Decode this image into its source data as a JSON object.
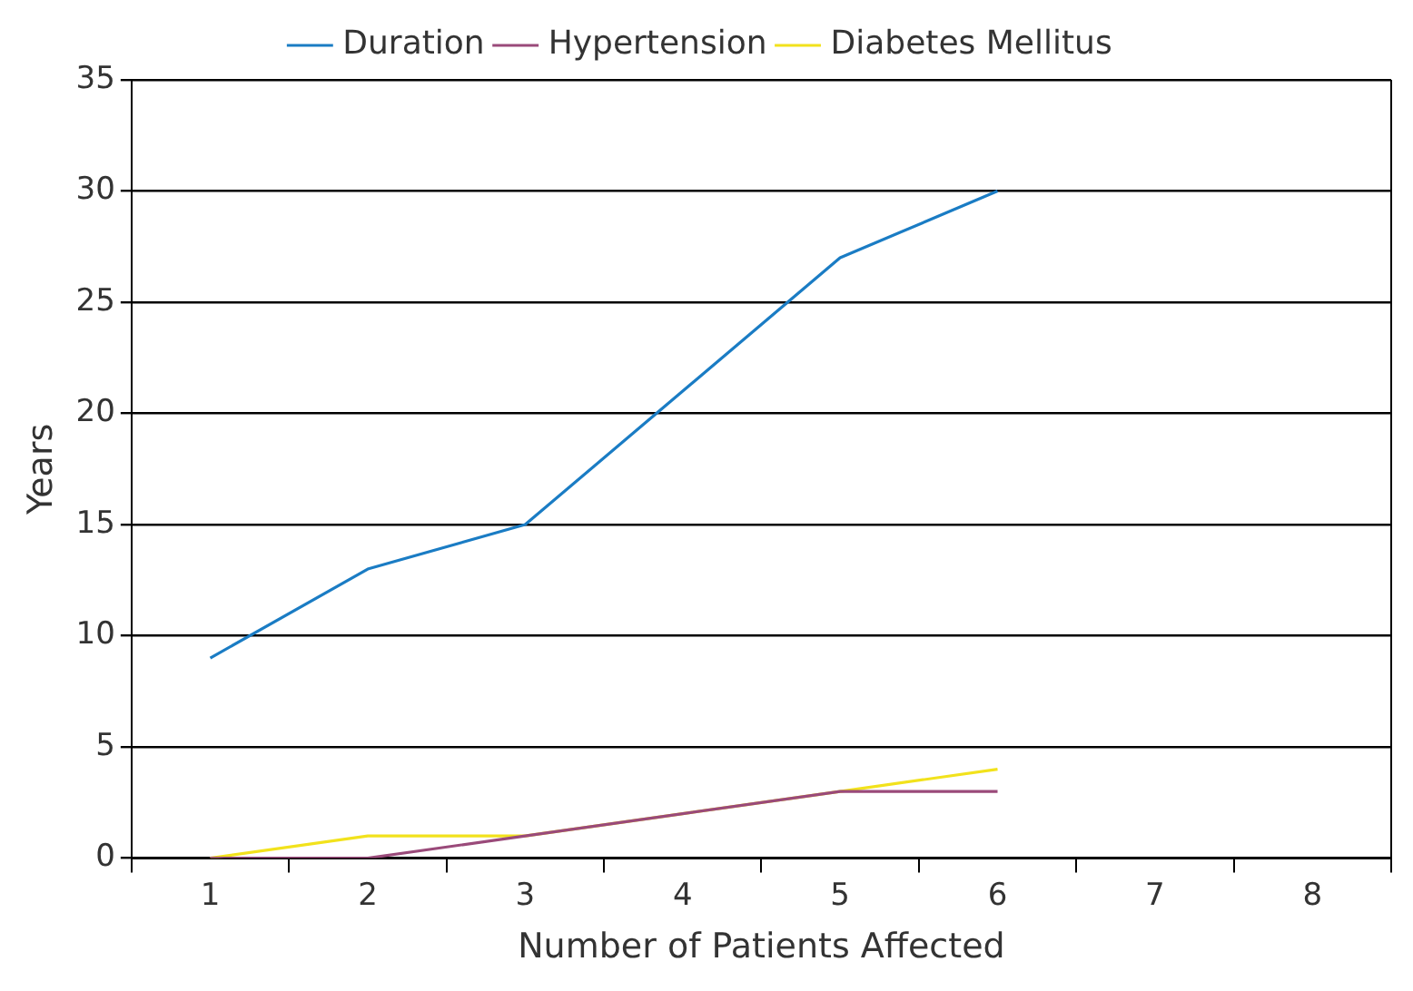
{
  "chart_data": {
    "type": "line",
    "xlabel": "Number of Patients Affected",
    "ylabel": "Years",
    "categories": [
      "1",
      "2",
      "3",
      "4",
      "5",
      "6",
      "7",
      "8"
    ],
    "series": [
      {
        "name": "Duration",
        "color": "#1a7cc4",
        "values": [
          9,
          13,
          15,
          21,
          27,
          30,
          null,
          null
        ]
      },
      {
        "name": "Hypertension",
        "color": "#9a4a7a",
        "values": [
          0,
          0,
          1,
          2,
          3,
          3,
          null,
          null
        ]
      },
      {
        "name": "Diabetes Mellitus",
        "color": "#f2e21c",
        "values": [
          0,
          1,
          1,
          2,
          3,
          4,
          null,
          null
        ]
      }
    ],
    "ylim": [
      0,
      35
    ],
    "yticks": [
      0,
      5,
      10,
      15,
      20,
      25,
      30,
      35
    ],
    "grid": "y",
    "legend": "top",
    "marker": "none",
    "line_style": "solid"
  }
}
